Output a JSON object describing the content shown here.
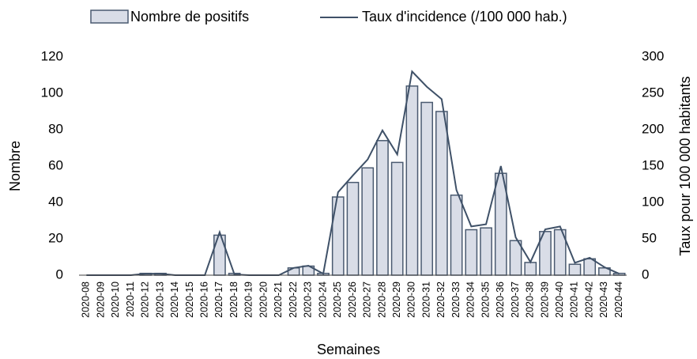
{
  "chart_data": {
    "type": "bar_line",
    "categories": [
      "2020-08",
      "2020-09",
      "2020-10",
      "2020-11",
      "2020-12",
      "2020-13",
      "2020-14",
      "2020-15",
      "2020-16",
      "2020-17",
      "2020-18",
      "2020-19",
      "2020-20",
      "2020-21",
      "2020-22",
      "2020-23",
      "2020-24",
      "2020-25",
      "2020-26",
      "2020-27",
      "2020-28",
      "2020-29",
      "2020-30",
      "2020-31",
      "2020-32",
      "2020-33",
      "2020-34",
      "2020-35",
      "2020-36",
      "2020-37",
      "2020-38",
      "2020-39",
      "2020-40",
      "2020-41",
      "2020-42",
      "2020-43",
      "2020-44"
    ],
    "series": [
      {
        "name": "Nombre de positifs",
        "type": "bar",
        "color": "#d9dde7",
        "edge_color": "#4a5a70",
        "axis": "y",
        "values": [
          0,
          0,
          0,
          0,
          1,
          1,
          0,
          0,
          0,
          22,
          1,
          0,
          0,
          0,
          4,
          5,
          1,
          43,
          51,
          59,
          74,
          62,
          104,
          95,
          90,
          44,
          25,
          26,
          56,
          19,
          7,
          24,
          25,
          6,
          9,
          4,
          1
        ]
      },
      {
        "name": "Taux d'incidence (/100 000 hab.)",
        "type": "line",
        "color": "#3f5168",
        "axis": "y2",
        "values": [
          0,
          0,
          0,
          0,
          2,
          2,
          0,
          0,
          0,
          59,
          1,
          0,
          0,
          0,
          10,
          13,
          2,
          114,
          137,
          159,
          199,
          166,
          280,
          259,
          242,
          117,
          67,
          70,
          150,
          52,
          18,
          63,
          67,
          17,
          24,
          11,
          2
        ]
      }
    ],
    "x_label": "Semaines",
    "y_label": "Nombre",
    "y2_label": "Taux pour 100 000 habitants",
    "ylim": [
      0,
      120
    ],
    "yticks": [
      0,
      20,
      40,
      60,
      80,
      100,
      120
    ],
    "y2lim": [
      0,
      300
    ],
    "y2ticks": [
      0,
      50,
      100,
      150,
      200,
      250,
      300
    ],
    "grid": false,
    "legend": "top"
  }
}
